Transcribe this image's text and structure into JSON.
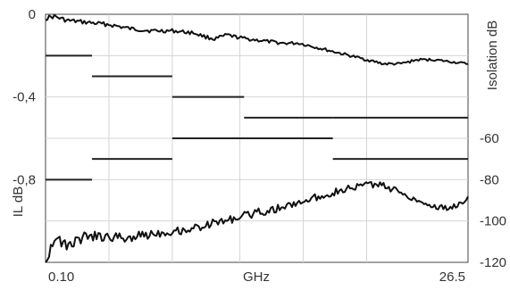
{
  "chart_data": {
    "type": "line",
    "xlabel": "GHz",
    "x_tick_labels": [
      "0.10",
      "26.5"
    ],
    "left_axis": {
      "label": "IL dB",
      "range": [
        -1.2,
        0
      ],
      "tick_values": [
        0,
        -0.4,
        -0.8
      ],
      "tick_labels": [
        "0",
        "-0,4",
        "-0,8"
      ]
    },
    "right_axis": {
      "label": "Isolation dB",
      "range": [
        -120,
        0
      ],
      "tick_values": [
        -60,
        -80,
        -100,
        -120
      ],
      "tick_labels": [
        "-60",
        "-80",
        "-100",
        "-120"
      ]
    },
    "grid": true,
    "x_range": [
      0,
      1
    ],
    "insertion_loss_steps": [
      {
        "x0": 0.0,
        "x1": 0.11,
        "y": -0.2
      },
      {
        "x0": 0.11,
        "x1": 0.3,
        "y": -0.3
      },
      {
        "x0": 0.3,
        "x1": 0.47,
        "y": -0.4
      },
      {
        "x0": 0.47,
        "x1": 0.68,
        "y": -0.5
      },
      {
        "x0": 0.68,
        "x1": 1.0,
        "y": -0.7
      }
    ],
    "isolation_steps": [
      {
        "x0": 0.0,
        "x1": 0.11,
        "y": -80
      },
      {
        "x0": 0.11,
        "x1": 0.3,
        "y": -70
      },
      {
        "x0": 0.3,
        "x1": 0.68,
        "y": -60
      },
      {
        "x0": 0.68,
        "x1": 1.0,
        "y": -50
      }
    ],
    "insertion_loss_trace": {
      "x": [
        0.0,
        0.02,
        0.05,
        0.1,
        0.15,
        0.2,
        0.25,
        0.3,
        0.35,
        0.38,
        0.4,
        0.43,
        0.45,
        0.48,
        0.52,
        0.56,
        0.6,
        0.64,
        0.68,
        0.72,
        0.76,
        0.8,
        0.84,
        0.88,
        0.92,
        0.96,
        1.0
      ],
      "y": [
        -0.02,
        -0.01,
        -0.03,
        -0.04,
        -0.05,
        -0.07,
        -0.08,
        -0.08,
        -0.09,
        -0.11,
        -0.12,
        -0.1,
        -0.11,
        -0.12,
        -0.13,
        -0.14,
        -0.14,
        -0.16,
        -0.18,
        -0.2,
        -0.22,
        -0.24,
        -0.24,
        -0.22,
        -0.22,
        -0.23,
        -0.24
      ]
    },
    "isolation_trace": {
      "x": [
        0.0,
        0.02,
        0.05,
        0.1,
        0.15,
        0.2,
        0.25,
        0.3,
        0.34,
        0.38,
        0.42,
        0.46,
        0.5,
        0.55,
        0.6,
        0.65,
        0.7,
        0.73,
        0.76,
        0.8,
        0.84,
        0.88,
        0.92,
        0.96,
        1.0
      ],
      "y": [
        -120,
        -108,
        -112,
        -107,
        -108,
        -108,
        -106,
        -105,
        -104,
        -102,
        -100,
        -98,
        -96,
        -94,
        -91,
        -88,
        -85,
        -84,
        -82,
        -83,
        -86,
        -90,
        -93,
        -94,
        -89
      ]
    }
  }
}
